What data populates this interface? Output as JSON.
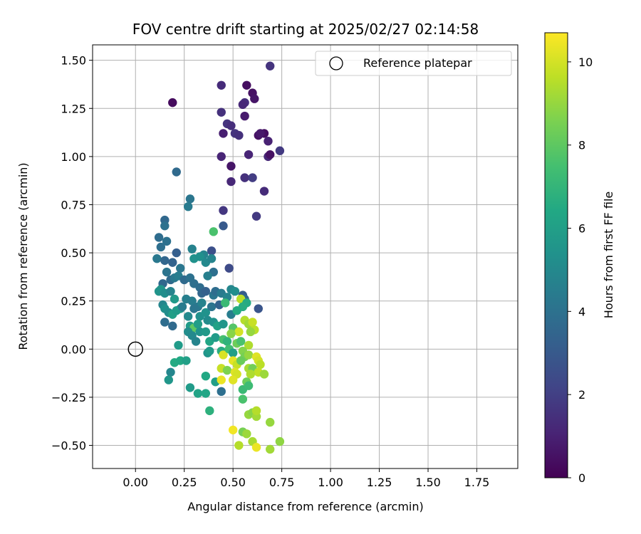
{
  "chart_data": {
    "type": "scatter",
    "title": "FOV centre drift starting at 2025/02/27 02:14:58",
    "xlabel": "Angular distance from reference (arcmin)",
    "ylabel": "Rotation from reference (arcmin)",
    "xlim": [
      -0.22,
      1.96
    ],
    "ylim": [
      -0.62,
      1.58
    ],
    "xticks": [
      "0.00",
      "0.25",
      "0.50",
      "0.75",
      "1.00",
      "1.25",
      "1.50",
      "1.75"
    ],
    "yticks": [
      "-0.50",
      "-0.25",
      "0.00",
      "0.25",
      "0.50",
      "0.75",
      "1.00",
      "1.25",
      "1.50"
    ],
    "grid": true,
    "legend": {
      "placement": "top-right",
      "entries": [
        "Reference platepar"
      ]
    },
    "reference_point": {
      "x": 0.0,
      "y": 0.0
    },
    "colorbar": {
      "label": "Hours from first FF file",
      "range": [
        0,
        10.7
      ],
      "ticks": [
        "0",
        "2",
        "4",
        "6",
        "8",
        "10"
      ],
      "colormap": "viridis"
    },
    "points": [
      {
        "x": 0.19,
        "y": 1.28,
        "h": 0.3
      },
      {
        "x": 0.44,
        "y": 1.37,
        "h": 1.3
      },
      {
        "x": 0.57,
        "y": 1.37,
        "h": 0.4
      },
      {
        "x": 0.69,
        "y": 1.47,
        "h": 1.6
      },
      {
        "x": 0.6,
        "y": 1.33,
        "h": 0.5
      },
      {
        "x": 0.61,
        "y": 1.3,
        "h": 0.6
      },
      {
        "x": 0.56,
        "y": 1.28,
        "h": 1.4
      },
      {
        "x": 0.55,
        "y": 1.27,
        "h": 1.2
      },
      {
        "x": 0.44,
        "y": 1.23,
        "h": 1.5
      },
      {
        "x": 0.56,
        "y": 1.21,
        "h": 0.8
      },
      {
        "x": 0.47,
        "y": 1.17,
        "h": 1.6
      },
      {
        "x": 0.49,
        "y": 1.16,
        "h": 1.4
      },
      {
        "x": 0.45,
        "y": 1.12,
        "h": 0.9
      },
      {
        "x": 0.51,
        "y": 1.12,
        "h": 1.6
      },
      {
        "x": 0.53,
        "y": 1.11,
        "h": 1.5
      },
      {
        "x": 0.63,
        "y": 1.11,
        "h": 0.5
      },
      {
        "x": 0.66,
        "y": 1.12,
        "h": 0.4
      },
      {
        "x": 0.64,
        "y": 1.12,
        "h": 0.7
      },
      {
        "x": 0.68,
        "y": 1.08,
        "h": 1.0
      },
      {
        "x": 0.74,
        "y": 1.03,
        "h": 1.8
      },
      {
        "x": 0.58,
        "y": 1.01,
        "h": 1.1
      },
      {
        "x": 0.68,
        "y": 1.0,
        "h": 1.2
      },
      {
        "x": 0.69,
        "y": 1.01,
        "h": 0.5
      },
      {
        "x": 0.44,
        "y": 1.0,
        "h": 1.1
      },
      {
        "x": 0.49,
        "y": 0.95,
        "h": 0.6
      },
      {
        "x": 0.56,
        "y": 0.89,
        "h": 1.5
      },
      {
        "x": 0.6,
        "y": 0.89,
        "h": 1.9
      },
      {
        "x": 0.49,
        "y": 0.87,
        "h": 1.2
      },
      {
        "x": 0.66,
        "y": 0.82,
        "h": 1.3
      },
      {
        "x": 0.45,
        "y": 0.72,
        "h": 1.7
      },
      {
        "x": 0.62,
        "y": 0.69,
        "h": 1.8
      },
      {
        "x": 0.21,
        "y": 0.92,
        "h": 3.7
      },
      {
        "x": 0.28,
        "y": 0.78,
        "h": 4.2
      },
      {
        "x": 0.27,
        "y": 0.74,
        "h": 4.4
      },
      {
        "x": 0.45,
        "y": 0.64,
        "h": 3.0
      },
      {
        "x": 0.4,
        "y": 0.61,
        "h": 7.6
      },
      {
        "x": 0.15,
        "y": 0.67,
        "h": 3.6
      },
      {
        "x": 0.15,
        "y": 0.64,
        "h": 4.0
      },
      {
        "x": 0.12,
        "y": 0.58,
        "h": 3.8
      },
      {
        "x": 0.16,
        "y": 0.56,
        "h": 4.0
      },
      {
        "x": 0.13,
        "y": 0.53,
        "h": 3.9
      },
      {
        "x": 0.29,
        "y": 0.52,
        "h": 4.7
      },
      {
        "x": 0.39,
        "y": 0.51,
        "h": 2.6
      },
      {
        "x": 0.21,
        "y": 0.5,
        "h": 3.2
      },
      {
        "x": 0.35,
        "y": 0.49,
        "h": 4.8
      },
      {
        "x": 0.11,
        "y": 0.47,
        "h": 4.3
      },
      {
        "x": 0.15,
        "y": 0.46,
        "h": 3.5
      },
      {
        "x": 0.19,
        "y": 0.45,
        "h": 3.4
      },
      {
        "x": 0.23,
        "y": 0.42,
        "h": 4.2
      },
      {
        "x": 0.3,
        "y": 0.47,
        "h": 5.4
      },
      {
        "x": 0.33,
        "y": 0.48,
        "h": 5.3
      },
      {
        "x": 0.36,
        "y": 0.45,
        "h": 5.0
      },
      {
        "x": 0.39,
        "y": 0.47,
        "h": 4.8
      },
      {
        "x": 0.4,
        "y": 0.4,
        "h": 3.9
      },
      {
        "x": 0.48,
        "y": 0.42,
        "h": 2.4
      },
      {
        "x": 0.16,
        "y": 0.4,
        "h": 4.1
      },
      {
        "x": 0.18,
        "y": 0.36,
        "h": 3.7
      },
      {
        "x": 0.2,
        "y": 0.37,
        "h": 4.3
      },
      {
        "x": 0.22,
        "y": 0.38,
        "h": 4.5
      },
      {
        "x": 0.25,
        "y": 0.36,
        "h": 3.7
      },
      {
        "x": 0.28,
        "y": 0.37,
        "h": 4.0
      },
      {
        "x": 0.3,
        "y": 0.34,
        "h": 3.9
      },
      {
        "x": 0.33,
        "y": 0.32,
        "h": 3.8
      },
      {
        "x": 0.37,
        "y": 0.38,
        "h": 4.6
      },
      {
        "x": 0.34,
        "y": 0.29,
        "h": 3.5
      },
      {
        "x": 0.36,
        "y": 0.3,
        "h": 3.3
      },
      {
        "x": 0.14,
        "y": 0.34,
        "h": 3.6
      },
      {
        "x": 0.13,
        "y": 0.31,
        "h": 5.6
      },
      {
        "x": 0.12,
        "y": 0.3,
        "h": 5.5
      },
      {
        "x": 0.15,
        "y": 0.29,
        "h": 5.2
      },
      {
        "x": 0.18,
        "y": 0.3,
        "h": 4.8
      },
      {
        "x": 0.2,
        "y": 0.26,
        "h": 5.7
      },
      {
        "x": 0.23,
        "y": 0.21,
        "h": 5.5
      },
      {
        "x": 0.26,
        "y": 0.26,
        "h": 4.6
      },
      {
        "x": 0.29,
        "y": 0.25,
        "h": 4.5
      },
      {
        "x": 0.32,
        "y": 0.22,
        "h": 4.3
      },
      {
        "x": 0.34,
        "y": 0.24,
        "h": 4.7
      },
      {
        "x": 0.4,
        "y": 0.28,
        "h": 4.2
      },
      {
        "x": 0.41,
        "y": 0.3,
        "h": 3.8
      },
      {
        "x": 0.44,
        "y": 0.29,
        "h": 4.4
      },
      {
        "x": 0.47,
        "y": 0.27,
        "h": 4.8
      },
      {
        "x": 0.49,
        "y": 0.31,
        "h": 4.9
      },
      {
        "x": 0.51,
        "y": 0.3,
        "h": 5.2
      },
      {
        "x": 0.55,
        "y": 0.28,
        "h": 3.1
      },
      {
        "x": 0.56,
        "y": 0.26,
        "h": 3.7
      },
      {
        "x": 0.54,
        "y": 0.26,
        "h": 9.6
      },
      {
        "x": 0.57,
        "y": 0.24,
        "h": 6.5
      },
      {
        "x": 0.55,
        "y": 0.22,
        "h": 6.6
      },
      {
        "x": 0.14,
        "y": 0.23,
        "h": 4.9
      },
      {
        "x": 0.15,
        "y": 0.21,
        "h": 5.3
      },
      {
        "x": 0.17,
        "y": 0.19,
        "h": 5.2
      },
      {
        "x": 0.19,
        "y": 0.18,
        "h": 6.0
      },
      {
        "x": 0.21,
        "y": 0.2,
        "h": 5.8
      },
      {
        "x": 0.24,
        "y": 0.22,
        "h": 4.4
      },
      {
        "x": 0.27,
        "y": 0.17,
        "h": 5.0
      },
      {
        "x": 0.3,
        "y": 0.21,
        "h": 4.2
      },
      {
        "x": 0.33,
        "y": 0.17,
        "h": 5.3
      },
      {
        "x": 0.36,
        "y": 0.19,
        "h": 5.4
      },
      {
        "x": 0.39,
        "y": 0.22,
        "h": 4.1
      },
      {
        "x": 0.43,
        "y": 0.23,
        "h": 3.4
      },
      {
        "x": 0.46,
        "y": 0.24,
        "h": 7.2
      },
      {
        "x": 0.49,
        "y": 0.18,
        "h": 4.5
      },
      {
        "x": 0.52,
        "y": 0.2,
        "h": 6.5
      },
      {
        "x": 0.63,
        "y": 0.21,
        "h": 2.8
      },
      {
        "x": 0.15,
        "y": 0.14,
        "h": 3.8
      },
      {
        "x": 0.19,
        "y": 0.12,
        "h": 3.7
      },
      {
        "x": 0.28,
        "y": 0.12,
        "h": 5.8
      },
      {
        "x": 0.3,
        "y": 0.11,
        "h": 8.0
      },
      {
        "x": 0.32,
        "y": 0.13,
        "h": 5.9
      },
      {
        "x": 0.37,
        "y": 0.15,
        "h": 5.1
      },
      {
        "x": 0.4,
        "y": 0.14,
        "h": 5.4
      },
      {
        "x": 0.42,
        "y": 0.12,
        "h": 6.1
      },
      {
        "x": 0.45,
        "y": 0.13,
        "h": 5.6
      },
      {
        "x": 0.5,
        "y": 0.11,
        "h": 7.8
      },
      {
        "x": 0.53,
        "y": 0.09,
        "h": 10.0
      },
      {
        "x": 0.56,
        "y": 0.15,
        "h": 9.5
      },
      {
        "x": 0.58,
        "y": 0.13,
        "h": 9.2
      },
      {
        "x": 0.6,
        "y": 0.14,
        "h": 9.8
      },
      {
        "x": 0.61,
        "y": 0.1,
        "h": 9.6
      },
      {
        "x": 0.59,
        "y": 0.09,
        "h": 9.0
      },
      {
        "x": 0.27,
        "y": 0.09,
        "h": 5.2
      },
      {
        "x": 0.29,
        "y": 0.07,
        "h": 5.0
      },
      {
        "x": 0.31,
        "y": 0.04,
        "h": 4.8
      },
      {
        "x": 0.33,
        "y": 0.09,
        "h": 5.5
      },
      {
        "x": 0.36,
        "y": 0.09,
        "h": 5.7
      },
      {
        "x": 0.38,
        "y": 0.04,
        "h": 6.3
      },
      {
        "x": 0.41,
        "y": 0.06,
        "h": 5.8
      },
      {
        "x": 0.45,
        "y": 0.05,
        "h": 7.5
      },
      {
        "x": 0.47,
        "y": 0.04,
        "h": 6.9
      },
      {
        "x": 0.49,
        "y": 0.08,
        "h": 8.8
      },
      {
        "x": 0.52,
        "y": 0.03,
        "h": 8.3
      },
      {
        "x": 0.54,
        "y": 0.04,
        "h": 7.6
      },
      {
        "x": 0.58,
        "y": 0.02,
        "h": 9.4
      },
      {
        "x": 0.22,
        "y": 0.02,
        "h": 5.8
      },
      {
        "x": 0.37,
        "y": -0.02,
        "h": 5.5
      },
      {
        "x": 0.38,
        "y": -0.01,
        "h": 5.8
      },
      {
        "x": 0.44,
        "y": -0.01,
        "h": 6.6
      },
      {
        "x": 0.45,
        "y": -0.03,
        "h": 10.1
      },
      {
        "x": 0.48,
        "y": 0.0,
        "h": 7.4
      },
      {
        "x": 0.5,
        "y": -0.02,
        "h": 6.0
      },
      {
        "x": 0.55,
        "y": -0.01,
        "h": 8.7
      },
      {
        "x": 0.56,
        "y": -0.04,
        "h": 8.5
      },
      {
        "x": 0.58,
        "y": -0.03,
        "h": 9.0
      },
      {
        "x": 0.62,
        "y": -0.04,
        "h": 10.2
      },
      {
        "x": 0.63,
        "y": -0.06,
        "h": 10.0
      },
      {
        "x": 0.64,
        "y": -0.08,
        "h": 9.6
      },
      {
        "x": 0.2,
        "y": -0.07,
        "h": 6.5
      },
      {
        "x": 0.23,
        "y": -0.06,
        "h": 6.4
      },
      {
        "x": 0.26,
        "y": -0.06,
        "h": 6.0
      },
      {
        "x": 0.5,
        "y": -0.06,
        "h": 10.3
      },
      {
        "x": 0.52,
        "y": -0.08,
        "h": 9.8
      },
      {
        "x": 0.54,
        "y": -0.06,
        "h": 8.2
      },
      {
        "x": 0.58,
        "y": -0.1,
        "h": 9.3
      },
      {
        "x": 0.6,
        "y": -0.1,
        "h": 8.4
      },
      {
        "x": 0.63,
        "y": -0.12,
        "h": 9.7
      },
      {
        "x": 0.66,
        "y": -0.13,
        "h": 9.1
      },
      {
        "x": 0.44,
        "y": -0.1,
        "h": 9.8
      },
      {
        "x": 0.47,
        "y": -0.11,
        "h": 8.6
      },
      {
        "x": 0.51,
        "y": -0.12,
        "h": 10.2
      },
      {
        "x": 0.52,
        "y": -0.13,
        "h": 10.0
      },
      {
        "x": 0.59,
        "y": -0.13,
        "h": 9.4
      },
      {
        "x": 0.18,
        "y": -0.12,
        "h": 4.9
      },
      {
        "x": 0.17,
        "y": -0.16,
        "h": 5.6
      },
      {
        "x": 0.36,
        "y": -0.14,
        "h": 6.4
      },
      {
        "x": 0.41,
        "y": -0.17,
        "h": 6.0
      },
      {
        "x": 0.44,
        "y": -0.16,
        "h": 10.4
      },
      {
        "x": 0.5,
        "y": -0.16,
        "h": 10.2
      },
      {
        "x": 0.57,
        "y": -0.17,
        "h": 8.3
      },
      {
        "x": 0.55,
        "y": -0.21,
        "h": 7.2
      },
      {
        "x": 0.58,
        "y": -0.19,
        "h": 7.3
      },
      {
        "x": 0.28,
        "y": -0.2,
        "h": 5.8
      },
      {
        "x": 0.32,
        "y": -0.23,
        "h": 6.2
      },
      {
        "x": 0.36,
        "y": -0.23,
        "h": 6.3
      },
      {
        "x": 0.44,
        "y": -0.22,
        "h": 3.9
      },
      {
        "x": 0.55,
        "y": -0.26,
        "h": 7.6
      },
      {
        "x": 0.38,
        "y": -0.32,
        "h": 6.8
      },
      {
        "x": 0.58,
        "y": -0.34,
        "h": 9.0
      },
      {
        "x": 0.6,
        "y": -0.33,
        "h": 8.8
      },
      {
        "x": 0.62,
        "y": -0.35,
        "h": 9.2
      },
      {
        "x": 0.62,
        "y": -0.32,
        "h": 9.5
      },
      {
        "x": 0.69,
        "y": -0.38,
        "h": 9.0
      },
      {
        "x": 0.5,
        "y": -0.42,
        "h": 10.5
      },
      {
        "x": 0.55,
        "y": -0.43,
        "h": 8.5
      },
      {
        "x": 0.57,
        "y": -0.44,
        "h": 9.1
      },
      {
        "x": 0.6,
        "y": -0.48,
        "h": 9.3
      },
      {
        "x": 0.53,
        "y": -0.5,
        "h": 9.5
      },
      {
        "x": 0.62,
        "y": -0.51,
        "h": 10.4
      },
      {
        "x": 0.69,
        "y": -0.52,
        "h": 9.2
      },
      {
        "x": 0.74,
        "y": -0.48,
        "h": 8.9
      }
    ]
  }
}
